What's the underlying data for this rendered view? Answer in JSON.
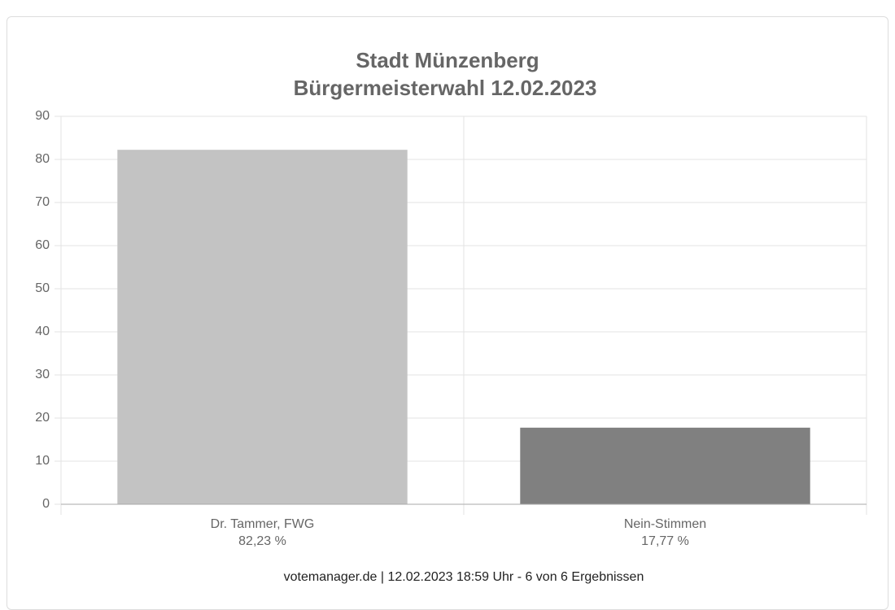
{
  "chart_data": {
    "type": "bar",
    "title": "Stadt Münzenberg",
    "subtitle": "Bürgermeisterwahl 12.02.2023",
    "categories": [
      "Dr. Tammer, FWG",
      "Nein-Stimmen"
    ],
    "values": [
      82.23,
      17.77
    ],
    "value_labels": [
      "82,23 %",
      "17,77 %"
    ],
    "colors": [
      "#c3c3c3",
      "#808080"
    ],
    "ylim": [
      0,
      90
    ],
    "yticks": [
      0,
      10,
      20,
      30,
      40,
      50,
      60,
      70,
      80,
      90
    ],
    "grid": true,
    "footer": "votemanager.de | 12.02.2023 18:59 Uhr - 6 von 6 Ergebnissen"
  }
}
